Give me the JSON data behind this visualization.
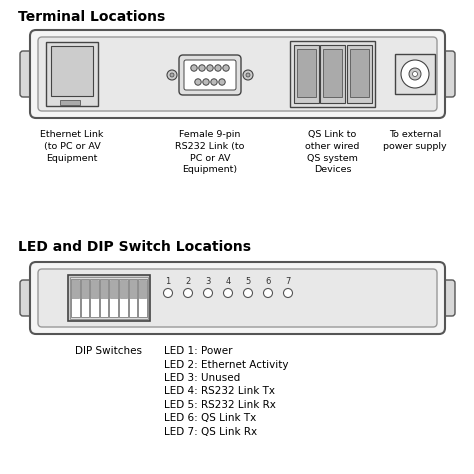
{
  "title1": "Terminal Locations",
  "title2": "LED and DIP Switch Locations",
  "labels_top": [
    "Ethernet Link\n(to PC or AV\nEquipment",
    "Female 9-pin\nRS232 Link (to\nPC or AV\nEquipment)",
    "QS Link to\nother wired\nQS system\nDevices",
    "To external\npower supply"
  ],
  "labels_led": [
    "DIP Switches",
    "LED 1: Power",
    "LED 2: Ethernet Activity",
    "LED 3: Unused",
    "LED 4: RS232 Link Tx",
    "LED 5: RS232 Link Rx",
    "LED 6: QS Link Tx",
    "LED 7: QS Link Rx"
  ],
  "bg_color": "#ffffff",
  "text_color": "#000000",
  "device_outline": "#555555",
  "device_fill": "#f5f5f5",
  "inner_fill": "#e8e8e8",
  "connector_fill": "#ffffff",
  "connector_edge": "#444444",
  "pin_fill": "#bbbbbb",
  "dip_fill": "#cccccc",
  "led_fill": "#ffffff",
  "led_edge": "#555555"
}
